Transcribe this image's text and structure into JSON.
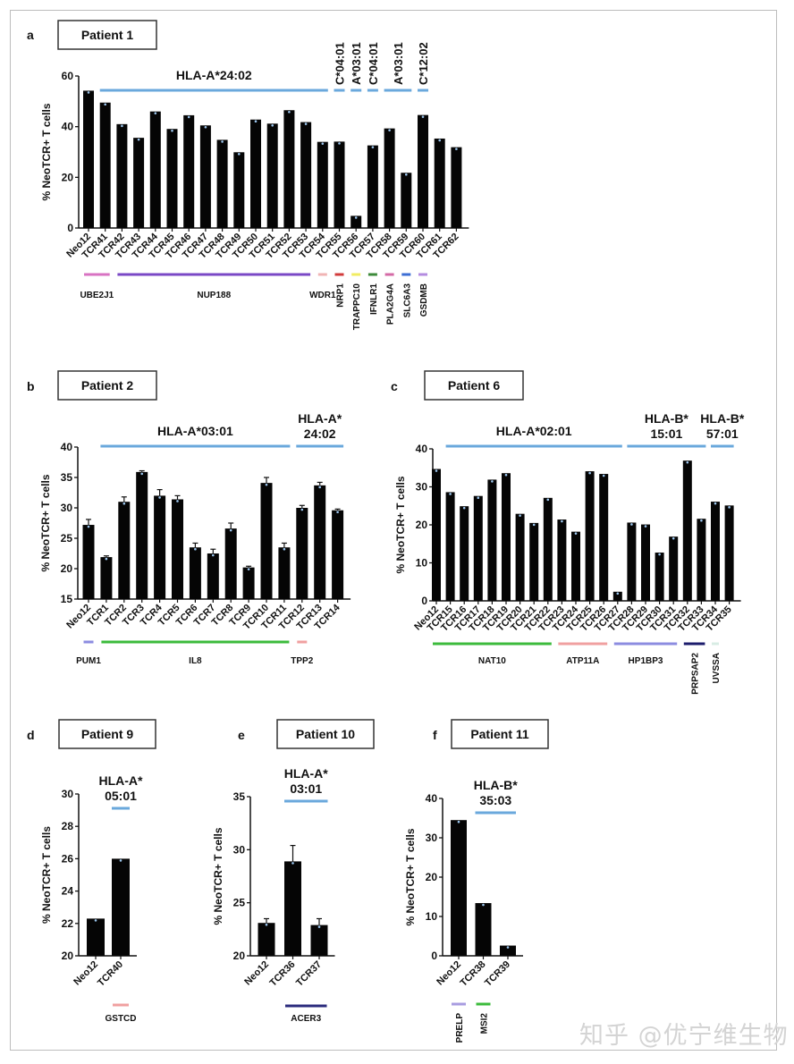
{
  "watermark": "知乎 @优宁维生物",
  "chart_data": [
    {
      "type": "bar",
      "panel": "a",
      "title": "Patient 1",
      "ylabel": "% NeoTCR+ T cells",
      "ylim": [
        0,
        60
      ],
      "yticks": [
        0,
        20,
        40,
        60
      ],
      "categories": [
        "Neo12",
        "TCR41",
        "TCR42",
        "TCR43",
        "TCR44",
        "TCR45",
        "TCR46",
        "TCR47",
        "TCR48",
        "TCR49",
        "TCR50",
        "TCR51",
        "TCR52",
        "TCR53",
        "TCR54",
        "TCR55",
        "TCR56",
        "TCR57",
        "TCR58",
        "TCR59",
        "TCR60",
        "TCR61",
        "TCR62"
      ],
      "values": [
        54.2,
        49.5,
        41.0,
        35.6,
        46.0,
        39.1,
        44.5,
        40.5,
        34.8,
        29.9,
        42.8,
        41.2,
        46.5,
        41.8,
        34.0,
        34.1,
        4.8,
        32.6,
        39.3,
        21.8,
        44.6,
        35.3,
        31.9
      ],
      "hla_groups": [
        {
          "label": "HLA-A*24:02",
          "start": 1,
          "end": 14,
          "vertical": false
        },
        {
          "label": "C*04:01",
          "start": 15,
          "end": 15,
          "vertical": true
        },
        {
          "label": "A*03:01",
          "start": 16,
          "end": 16,
          "vertical": true
        },
        {
          "label": "C*04:01",
          "start": 17,
          "end": 17,
          "vertical": true
        },
        {
          "label": "A*03:01",
          "start": 18,
          "end": 19,
          "vertical": true
        },
        {
          "label": "C*12:02",
          "start": 20,
          "end": 20,
          "vertical": true
        }
      ],
      "genes": [
        {
          "label": "UBE2J1",
          "start": 0,
          "end": 1,
          "color": "#d872c2",
          "vertical": false
        },
        {
          "label": "NUP188",
          "start": 2,
          "end": 13,
          "color": "#7a48c6",
          "vertical": false
        },
        {
          "label": "WDR1",
          "start": 14,
          "end": 14,
          "color": "#f0b4b4",
          "vertical": false
        },
        {
          "label": "NRP1",
          "start": 15,
          "end": 15,
          "color": "#d23b3b",
          "vertical": true
        },
        {
          "label": "TRAPPC10",
          "start": 16,
          "end": 16,
          "color": "#f1ec62",
          "vertical": true
        },
        {
          "label": "IFNLR1",
          "start": 17,
          "end": 17,
          "color": "#3d8a3a",
          "vertical": true
        },
        {
          "label": "PLA2G4A",
          "start": 18,
          "end": 18,
          "color": "#d46aa6",
          "vertical": true
        },
        {
          "label": "SLC6A3",
          "start": 19,
          "end": 19,
          "color": "#3d6ed4",
          "vertical": true
        },
        {
          "label": "GSDMB",
          "start": 20,
          "end": 20,
          "color": "#b48ce0",
          "vertical": true
        }
      ]
    },
    {
      "type": "bar",
      "panel": "b",
      "title": "Patient 2",
      "ylabel": "% NeoTCR+ T cells",
      "ylim": [
        15,
        40
      ],
      "yticks": [
        15,
        20,
        25,
        30,
        35,
        40
      ],
      "categories": [
        "Neo12",
        "TCR1",
        "TCR2",
        "TCR3",
        "TCR4",
        "TCR5",
        "TCR6",
        "TCR7",
        "TCR8",
        "TCR9",
        "TCR10",
        "TCR11",
        "TCR12",
        "TCR13",
        "TCR14"
      ],
      "values": [
        27.2,
        21.9,
        31.0,
        35.9,
        32.0,
        31.4,
        23.5,
        22.5,
        26.6,
        20.2,
        34.1,
        23.5,
        30.0,
        33.7,
        29.6
      ],
      "errors": [
        0.9,
        0.2,
        0.8,
        0.2,
        1.0,
        0.6,
        0.7,
        0.7,
        0.9,
        0.2,
        0.9,
        0.7,
        0.4,
        0.5,
        0.2
      ],
      "hla_groups": [
        {
          "label": "HLA-A*03:01",
          "start": 1,
          "end": 11
        },
        {
          "label": "HLA-A* 24:02",
          "start": 12,
          "end": 14
        }
      ],
      "genes": [
        {
          "label": "PUM1",
          "start": 0,
          "end": 0,
          "color": "#8c8ce0",
          "vertical": false
        },
        {
          "label": "IL8",
          "start": 1,
          "end": 11,
          "color": "#3cbb3c",
          "vertical": false
        },
        {
          "label": "TPP2",
          "start": 12,
          "end": 12,
          "color": "#f0a0a0",
          "vertical": false
        }
      ]
    },
    {
      "type": "bar",
      "panel": "c",
      "title": "Patient 6",
      "ylabel": "% NeoTCR+ T cells",
      "ylim": [
        0,
        40
      ],
      "yticks": [
        0,
        10,
        20,
        30,
        40
      ],
      "categories": [
        "Neo12",
        "TCR15",
        "TCR16",
        "TCR17",
        "TCR18",
        "TCR19",
        "TCR20",
        "TCR21",
        "TCR22",
        "TCR23",
        "TCR24",
        "TCR25",
        "TCR26",
        "TCR27",
        "TCR28",
        "TCR29",
        "TCR30",
        "TCR31",
        "TCR32",
        "TCR33",
        "TCR34",
        "TCR35"
      ],
      "values": [
        34.7,
        28.6,
        24.9,
        27.6,
        31.9,
        33.6,
        22.9,
        20.5,
        27.1,
        21.4,
        18.2,
        34.1,
        33.4,
        2.4,
        20.6,
        20.1,
        12.7,
        16.9,
        36.9,
        21.6,
        26.1,
        25.1
      ],
      "hla_groups": [
        {
          "label": "HLA-A*02:01",
          "start": 1,
          "end": 13
        },
        {
          "label": "HLA-B* 15:01",
          "start": 14,
          "end": 19
        },
        {
          "label": "HLA-B* 57:01",
          "start": 20,
          "end": 21
        }
      ],
      "genes": [
        {
          "label": "NAT10",
          "start": 0,
          "end": 8,
          "color": "#3cbb3c",
          "vertical": false
        },
        {
          "label": "ATP11A",
          "start": 9,
          "end": 12,
          "color": "#f0a0a0",
          "vertical": false
        },
        {
          "label": "HP1BP3",
          "start": 13,
          "end": 17,
          "color": "#8c8ce0",
          "vertical": false
        },
        {
          "label": "PRPSAP2",
          "start": 18,
          "end": 19,
          "color": "#1c1c6c",
          "vertical": true
        },
        {
          "label": "UVSSA",
          "start": 20,
          "end": 20,
          "color": "#d8ece4",
          "vertical": true
        }
      ]
    },
    {
      "type": "bar",
      "panel": "d",
      "title": "Patient 9",
      "ylabel": "% NeoTCR+ T cells",
      "ylim": [
        20,
        30
      ],
      "yticks": [
        20,
        22,
        24,
        26,
        28,
        30
      ],
      "categories": [
        "Neo12",
        "TCR40"
      ],
      "values": [
        22.3,
        26.0
      ],
      "hla_groups": [
        {
          "label": "HLA-A* 05:01",
          "start": 1,
          "end": 1
        }
      ],
      "genes": [
        {
          "label": "GSTCD",
          "start": 1,
          "end": 1,
          "color": "#f0a0a0",
          "vertical": false
        }
      ]
    },
    {
      "type": "bar",
      "panel": "e",
      "title": "Patient 10",
      "ylabel": "% NeoTCR+ T cells",
      "ylim": [
        20,
        35
      ],
      "yticks": [
        20,
        25,
        30,
        35
      ],
      "categories": [
        "Neo12",
        "TCR36",
        "TCR37"
      ],
      "values": [
        23.1,
        28.9,
        22.9
      ],
      "errors": [
        0.4,
        1.5,
        0.6
      ],
      "hla_groups": [
        {
          "label": "HLA-A* 03:01",
          "start": 1,
          "end": 2
        }
      ],
      "genes": [
        {
          "label": "ACER3",
          "start": 1,
          "end": 2,
          "color": "#2a2a7c",
          "vertical": false
        }
      ]
    },
    {
      "type": "bar",
      "panel": "f",
      "title": "Patient 11",
      "ylabel": "% NeoTCR+ T cells",
      "ylim": [
        0,
        40
      ],
      "yticks": [
        0,
        10,
        20,
        30,
        40
      ],
      "categories": [
        "Neo12",
        "TCR38",
        "TCR39"
      ],
      "values": [
        34.5,
        13.4,
        2.6
      ],
      "hla_groups": [
        {
          "label": "HLA-B* 35:03",
          "start": 1,
          "end": 2
        }
      ],
      "genes": [
        {
          "label": "PRELP",
          "start": 0,
          "end": 0,
          "color": "#a89ce0",
          "vertical": true
        },
        {
          "label": "MSI2",
          "start": 1,
          "end": 1,
          "color": "#3cbb3c",
          "vertical": true
        }
      ]
    }
  ]
}
